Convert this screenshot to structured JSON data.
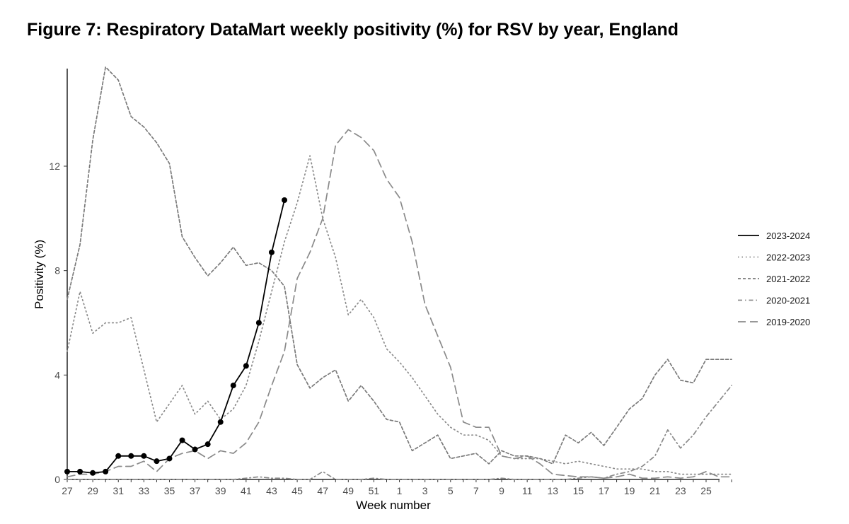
{
  "title": "Figure 7: Respiratory DataMart weekly positivity (%) for RSV by year, England",
  "chart_data": {
    "type": "line",
    "title": "Figure 7: Respiratory DataMart weekly positivity (%) for RSV by year, England",
    "xlabel": "Week number",
    "ylabel": "Positivity (%)",
    "ylim": [
      0,
      15.8
    ],
    "x_tick_labels": [
      "27",
      "29",
      "31",
      "33",
      "35",
      "37",
      "39",
      "41",
      "43",
      "45",
      "47",
      "49",
      "51",
      "1",
      "3",
      "5",
      "7",
      "9",
      "11",
      "13",
      "15",
      "17",
      "19",
      "21",
      "23",
      "25"
    ],
    "y_ticks": [
      0,
      4,
      8,
      12
    ],
    "x_index_note": "points are indexed by week position starting at week 27 (index 0) through week 26 (index 52)",
    "series": [
      {
        "name": "2023-2024",
        "style": "solid",
        "color": "#000000",
        "markers": true,
        "x": [
          0,
          1,
          2,
          3,
          4,
          5,
          6,
          7,
          8,
          9,
          10,
          11,
          12,
          13,
          14,
          15,
          16,
          17
        ],
        "values": [
          0.3,
          0.3,
          0.25,
          0.3,
          0.9,
          0.9,
          0.9,
          0.7,
          0.8,
          1.5,
          1.15,
          1.35,
          2.2,
          3.6,
          4.35,
          6.0,
          8.7,
          10.7
        ]
      },
      {
        "name": "2022-2023",
        "style": "dotted",
        "color": "#8a8a8a",
        "markers": false,
        "x": [
          0,
          1,
          2,
          3,
          4,
          5,
          6,
          7,
          8,
          9,
          10,
          11,
          12,
          13,
          14,
          15,
          16,
          17,
          18,
          19,
          20,
          21,
          22,
          23,
          24,
          25,
          26,
          27,
          28,
          29,
          30,
          31,
          32,
          33,
          34,
          35,
          36,
          37,
          38,
          39,
          40,
          41,
          42,
          43,
          44,
          45,
          46,
          47,
          48,
          49,
          50,
          51,
          52
        ],
        "values": [
          4.9,
          7.2,
          5.6,
          6.0,
          6.0,
          6.2,
          4.2,
          2.2,
          2.9,
          3.6,
          2.5,
          3.0,
          2.3,
          2.7,
          3.6,
          5.3,
          7.2,
          9.1,
          10.6,
          12.4,
          10.0,
          8.5,
          6.3,
          6.9,
          6.2,
          5.0,
          4.5,
          3.9,
          3.2,
          2.5,
          2.0,
          1.7,
          1.7,
          1.5,
          0.9,
          0.8,
          0.8,
          0.8,
          0.7,
          0.6,
          0.7,
          0.6,
          0.5,
          0.4,
          0.4,
          0.4,
          0.3,
          0.3,
          0.2,
          0.2,
          0.2,
          0.2,
          0.2
        ]
      },
      {
        "name": "2021-2022",
        "style": "short-dash",
        "color": "#7a7a7a",
        "markers": false,
        "x": [
          0,
          1,
          2,
          3,
          4,
          5,
          6,
          7,
          8,
          9,
          10,
          11,
          12,
          13,
          14,
          15,
          16,
          17,
          18,
          19,
          20,
          21,
          22,
          23,
          24,
          25,
          26,
          27,
          28,
          29,
          30,
          31,
          32,
          33,
          34,
          35,
          36,
          37,
          38,
          39,
          40,
          41,
          42,
          43,
          44,
          45,
          46,
          47,
          48,
          49,
          50,
          51,
          52
        ],
        "values": [
          6.9,
          9.0,
          13.0,
          15.8,
          15.3,
          13.9,
          13.5,
          12.9,
          12.1,
          9.3,
          8.5,
          7.8,
          8.3,
          8.9,
          8.2,
          8.3,
          8.0,
          7.4,
          4.4,
          3.5,
          3.9,
          4.2,
          3.0,
          3.6,
          3.0,
          2.3,
          2.2,
          1.1,
          1.4,
          1.7,
          0.8,
          0.9,
          1.0,
          0.6,
          1.1,
          0.9,
          0.9,
          0.8,
          0.6,
          1.7,
          1.4,
          1.8,
          1.3,
          2.0,
          2.7,
          3.1,
          4.0,
          4.6,
          3.8,
          3.7,
          4.6,
          4.6,
          4.6
        ]
      },
      {
        "name": "2020-2021",
        "style": "dash-dot",
        "color": "#8a8a8a",
        "markers": false,
        "x": [
          0,
          1,
          2,
          3,
          4,
          5,
          6,
          7,
          8,
          9,
          10,
          11,
          12,
          13,
          14,
          15,
          16,
          17,
          18,
          19,
          20,
          21,
          22,
          23,
          24,
          25,
          26,
          27,
          28,
          29,
          30,
          31,
          32,
          33,
          34,
          35,
          36,
          37,
          38,
          39,
          40,
          41,
          42,
          43,
          44,
          45,
          46,
          47,
          48,
          49,
          50,
          51,
          52
        ],
        "values": [
          0.0,
          0.0,
          0.0,
          0.0,
          0.0,
          0.0,
          0.0,
          0.0,
          0.0,
          0.0,
          0.0,
          0.0,
          0.0,
          0.0,
          0.05,
          0.1,
          0.05,
          0.05,
          0.0,
          0.0,
          0.3,
          0.0,
          0.0,
          0.0,
          0.05,
          0.0,
          0.0,
          0.0,
          0.0,
          0.0,
          0.0,
          0.0,
          0.0,
          0.0,
          0.05,
          0.0,
          0.0,
          0.0,
          0.0,
          0.0,
          0.05,
          0.1,
          0.05,
          0.2,
          0.3,
          0.5,
          0.9,
          1.9,
          1.2,
          1.7,
          2.4,
          3.0,
          3.6
        ]
      },
      {
        "name": "2019-2020",
        "style": "long-dash",
        "color": "#8a8a8a",
        "markers": false,
        "x": [
          0,
          1,
          2,
          3,
          4,
          5,
          6,
          7,
          8,
          9,
          10,
          11,
          12,
          13,
          14,
          15,
          16,
          17,
          18,
          19,
          20,
          21,
          22,
          23,
          24,
          25,
          26,
          27,
          28,
          29,
          30,
          31,
          32,
          33,
          34,
          35,
          36,
          37,
          38,
          39,
          40,
          41,
          42,
          43,
          44,
          45,
          46,
          47,
          48,
          49,
          50,
          51,
          52
        ],
        "values": [
          0.1,
          0.2,
          0.2,
          0.3,
          0.5,
          0.5,
          0.7,
          0.3,
          0.8,
          1.0,
          1.1,
          0.8,
          1.1,
          1.0,
          1.4,
          2.2,
          3.6,
          4.9,
          7.7,
          8.7,
          10.0,
          12.8,
          13.4,
          13.1,
          12.6,
          11.5,
          10.8,
          9.1,
          6.7,
          5.5,
          4.3,
          2.2,
          2.0,
          2.0,
          0.9,
          0.8,
          0.9,
          0.6,
          0.2,
          0.15,
          0.1,
          0.1,
          0.05,
          0.1,
          0.2,
          0.05,
          0.05,
          0.1,
          0.05,
          0.1,
          0.3,
          0.1,
          0.1
        ]
      }
    ],
    "legend_position": "right"
  }
}
